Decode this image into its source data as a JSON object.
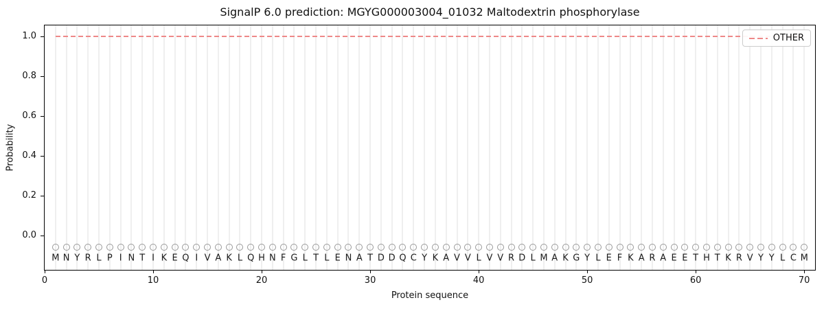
{
  "chart_data": {
    "type": "line",
    "title": "SignalP 6.0 prediction: MGYG000003004_01032 Maltodextrin phosphorylase",
    "xlabel": "Protein sequence",
    "ylabel": "Probability",
    "xlim": [
      0,
      71
    ],
    "ylim": [
      -0.172,
      1.055
    ],
    "x_ticks": [
      {
        "v": 0,
        "label": "0"
      },
      {
        "v": 10,
        "label": "10"
      },
      {
        "v": 20,
        "label": "20"
      },
      {
        "v": 30,
        "label": "30"
      },
      {
        "v": 40,
        "label": "40"
      },
      {
        "v": 50,
        "label": "50"
      },
      {
        "v": 60,
        "label": "60"
      },
      {
        "v": 70,
        "label": "70"
      }
    ],
    "y_ticks": [
      {
        "v": 0.0,
        "label": "0.0"
      },
      {
        "v": 0.2,
        "label": "0.2"
      },
      {
        "v": 0.4,
        "label": "0.4"
      },
      {
        "v": 0.6,
        "label": "0.6"
      },
      {
        "v": 0.8,
        "label": "0.8"
      },
      {
        "v": 1.0,
        "label": "1.0"
      }
    ],
    "grid": {
      "vertical_line_per_residue": true,
      "color": "#efefef"
    },
    "series": [
      {
        "name": "OTHER",
        "linestyle": "dashed",
        "color": "#ee8888",
        "x_start": 1,
        "x_end": 70,
        "constant_y": 1.0
      }
    ],
    "legend": {
      "position": "upper right",
      "label": "OTHER"
    },
    "sequence": "MNYRLPINTIKEQIVAKLQHNFGLTLENATDDQCYKAVVLVVRDLMAKGYLEFKARAEETHTKRVYYLCM",
    "sequence_marker": {
      "shape": "open-circle",
      "y": -0.058,
      "edge_color": "#999999"
    },
    "sequence_label_y": -0.115
  }
}
